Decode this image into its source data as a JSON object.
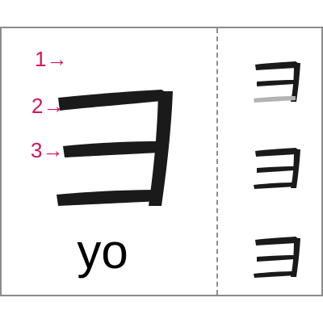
{
  "character": {
    "glyph": "ヨ",
    "romaji": "yo",
    "stroke_count": 3
  },
  "stroke_labels": [
    "1→",
    "2→",
    "3→"
  ],
  "stroke_order_steps": [
    {
      "step": 1,
      "strokes_shown": 2
    },
    {
      "step": 2,
      "strokes_shown": 3
    },
    {
      "step": 3,
      "strokes_shown": 3
    }
  ],
  "colors": {
    "ink": "#1a1a1a",
    "pending_stroke": "#b3b3b3",
    "label_accent": "#d4145a",
    "border": "#8c8c8c"
  }
}
